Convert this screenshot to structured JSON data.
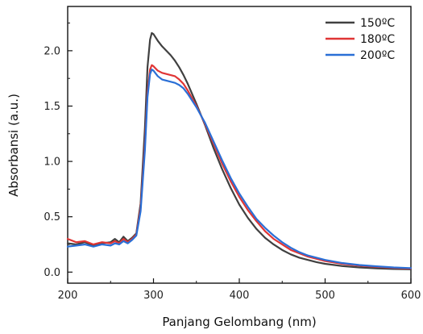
{
  "chart_data": {
    "type": "line",
    "title": "",
    "xlabel": "Panjang Gelombang (nm)",
    "ylabel": "Absorbansi (a.u.)",
    "xlim": [
      200,
      600
    ],
    "ylim": [
      -0.1,
      2.4
    ],
    "x_ticks": [
      "200",
      "300",
      "400",
      "500",
      "600"
    ],
    "y_ticks": [
      "0.0",
      "0.5",
      "1.0",
      "1.5",
      "2.0"
    ],
    "grid": false,
    "legend_position": "top-right",
    "series": [
      {
        "name": "150ºC",
        "color": "#404040",
        "x": [
          200,
          210,
          220,
          230,
          240,
          250,
          255,
          260,
          265,
          270,
          275,
          280,
          285,
          290,
          293,
          296,
          298,
          300,
          305,
          310,
          315,
          320,
          325,
          330,
          335,
          340,
          350,
          360,
          370,
          380,
          390,
          400,
          410,
          420,
          430,
          440,
          450,
          460,
          470,
          480,
          490,
          500,
          520,
          540,
          560,
          580,
          600
        ],
        "y": [
          0.26,
          0.25,
          0.27,
          0.24,
          0.26,
          0.27,
          0.3,
          0.27,
          0.32,
          0.28,
          0.31,
          0.35,
          0.62,
          1.3,
          1.85,
          2.1,
          2.16,
          2.15,
          2.09,
          2.04,
          2.0,
          1.96,
          1.91,
          1.85,
          1.78,
          1.7,
          1.52,
          1.33,
          1.12,
          0.93,
          0.76,
          0.61,
          0.49,
          0.39,
          0.31,
          0.25,
          0.2,
          0.16,
          0.13,
          0.11,
          0.09,
          0.075,
          0.055,
          0.042,
          0.034,
          0.028,
          0.025
        ]
      },
      {
        "name": "180ºC",
        "color": "#e03535",
        "x": [
          200,
          210,
          220,
          230,
          240,
          250,
          255,
          260,
          265,
          270,
          275,
          280,
          285,
          290,
          293,
          296,
          298,
          300,
          305,
          310,
          315,
          320,
          325,
          330,
          335,
          340,
          350,
          360,
          370,
          380,
          390,
          400,
          410,
          420,
          430,
          440,
          450,
          460,
          470,
          480,
          490,
          500,
          520,
          540,
          560,
          580,
          600
        ],
        "y": [
          0.3,
          0.27,
          0.28,
          0.25,
          0.27,
          0.26,
          0.28,
          0.26,
          0.3,
          0.27,
          0.3,
          0.34,
          0.58,
          1.15,
          1.62,
          1.83,
          1.87,
          1.86,
          1.82,
          1.8,
          1.79,
          1.78,
          1.77,
          1.74,
          1.7,
          1.64,
          1.5,
          1.34,
          1.16,
          0.98,
          0.82,
          0.68,
          0.56,
          0.46,
          0.37,
          0.3,
          0.25,
          0.2,
          0.17,
          0.14,
          0.12,
          0.1,
          0.075,
          0.058,
          0.047,
          0.038,
          0.032
        ]
      },
      {
        "name": "200ºC",
        "color": "#2a6fd6",
        "x": [
          200,
          210,
          220,
          230,
          240,
          250,
          255,
          260,
          265,
          270,
          275,
          280,
          285,
          290,
          293,
          296,
          298,
          300,
          305,
          310,
          315,
          320,
          325,
          330,
          335,
          340,
          350,
          360,
          370,
          380,
          390,
          400,
          410,
          420,
          430,
          440,
          450,
          460,
          470,
          480,
          490,
          500,
          520,
          540,
          560,
          580,
          600
        ],
        "y": [
          0.23,
          0.24,
          0.25,
          0.23,
          0.25,
          0.24,
          0.26,
          0.25,
          0.28,
          0.26,
          0.29,
          0.33,
          0.55,
          1.1,
          1.58,
          1.79,
          1.83,
          1.82,
          1.77,
          1.74,
          1.73,
          1.72,
          1.71,
          1.69,
          1.66,
          1.61,
          1.49,
          1.35,
          1.18,
          1.01,
          0.85,
          0.71,
          0.59,
          0.48,
          0.4,
          0.33,
          0.27,
          0.22,
          0.18,
          0.15,
          0.13,
          0.11,
          0.082,
          0.064,
          0.052,
          0.042,
          0.036
        ]
      }
    ]
  }
}
